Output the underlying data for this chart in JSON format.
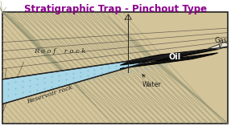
{
  "title": "Stratigraphic Trap - Pinchout Type",
  "title_color": "#8B008B",
  "title_fontsize": 8.5,
  "bg_color": "#d4c49a",
  "rock_color": "#c8b87a",
  "rock_hatch_color": "#999977",
  "oil_color": "#111111",
  "reservoir_color": "#a8d8e8",
  "reservoir_dot_color": "#7ab8cc",
  "gas_color": "#e8e4d0",
  "border_color": "#222222",
  "text_dark": "#222222",
  "text_blue": "#003366",
  "text_purple": "#8B008B",
  "water_label": "Water",
  "oil_label": "Oil",
  "gas_label": "Gas",
  "roof_label": "R o o f    r o c k",
  "reservoir_label": "Reservoir rock",
  "figsize": [
    2.87,
    1.57
  ],
  "dpi": 100
}
